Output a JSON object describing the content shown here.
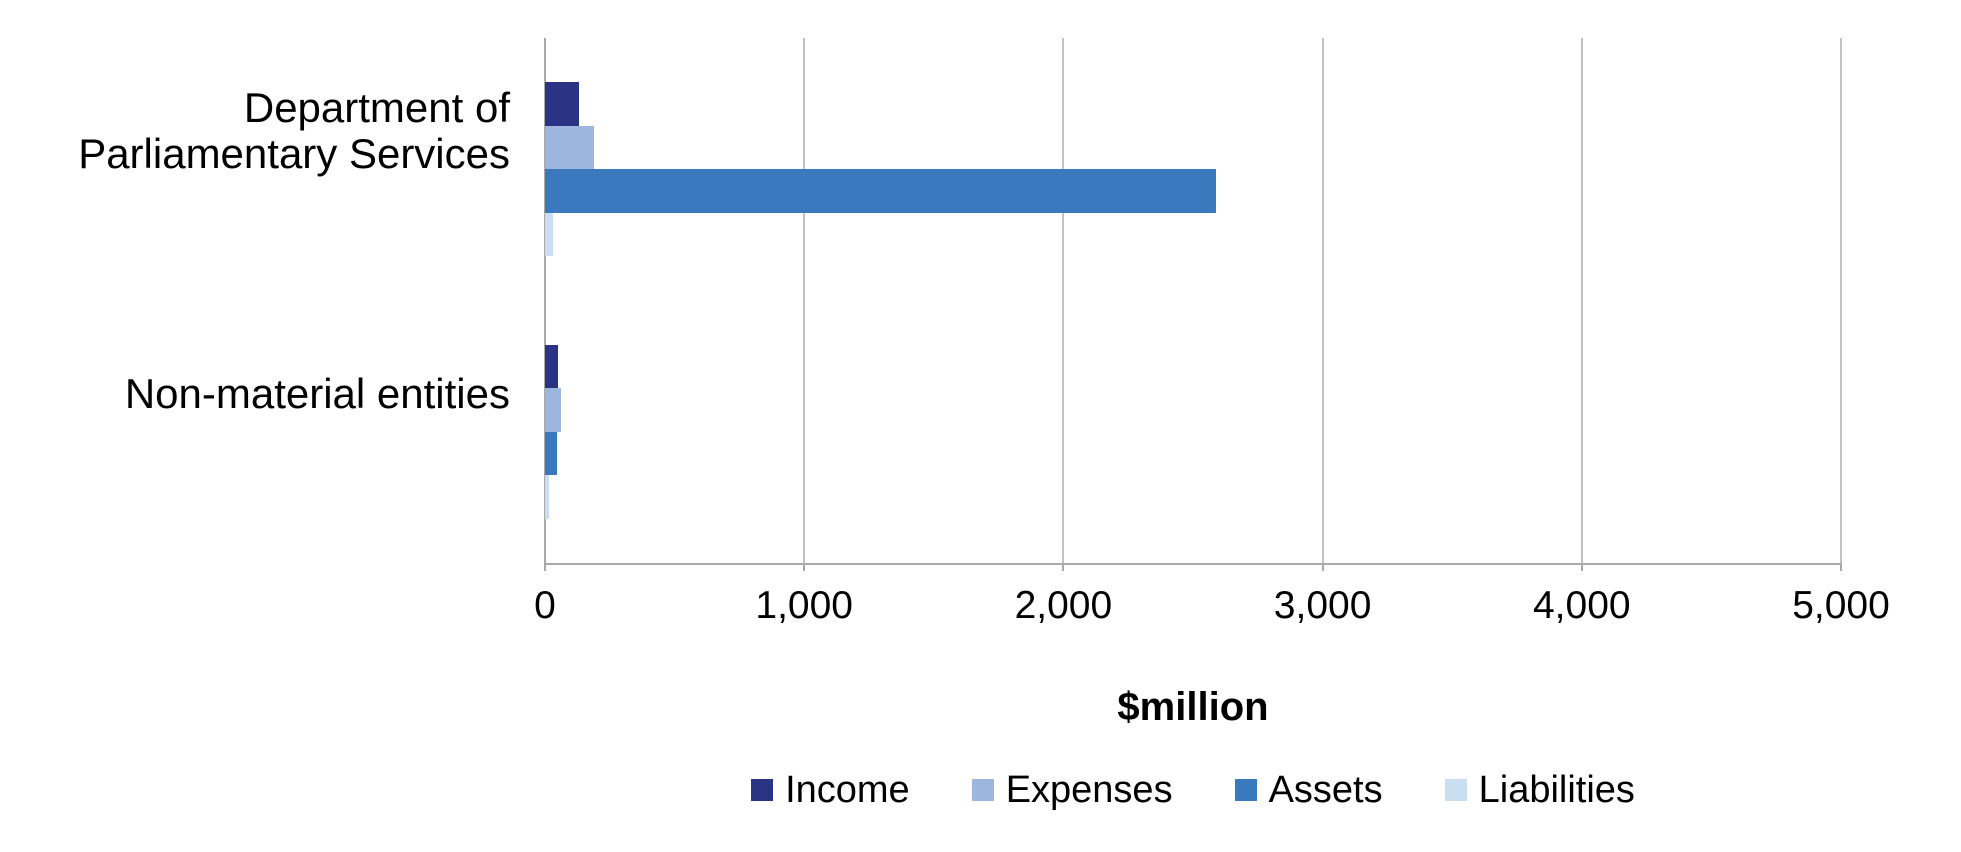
{
  "chart_data": {
    "type": "bar",
    "orientation": "horizontal",
    "title": "",
    "xlabel": "$million",
    "categories": [
      {
        "name": "Department of Parliamentary Services",
        "label_lines": [
          "Department of",
          "Parliamentary Services"
        ]
      },
      {
        "name": "Non-material entities",
        "label_lines": [
          "Non-material entities"
        ]
      }
    ],
    "series": [
      {
        "name": "Income",
        "color": "#2b3384",
        "values": [
          130,
          50
        ]
      },
      {
        "name": "Expenses",
        "color": "#9db6de",
        "values": [
          190,
          60
        ]
      },
      {
        "name": "Assets",
        "color": "#3a79be",
        "values": [
          2590,
          47
        ]
      },
      {
        "name": "Liabilities",
        "color": "#c9dff1",
        "values": [
          30,
          15
        ]
      }
    ],
    "x_axis": {
      "min": 0,
      "max": 5000,
      "tick_interval": 1000,
      "tick_labels": [
        "0",
        "1,000",
        "2,000",
        "3,000",
        "4,000",
        "5,000"
      ]
    },
    "legend_position": "bottom",
    "grid": "vertical-gridlines",
    "colors": {
      "gridline": "#c2c2c2",
      "axis_line": "#a9a9a9",
      "text": "#000000",
      "background": "#ffffff"
    }
  }
}
